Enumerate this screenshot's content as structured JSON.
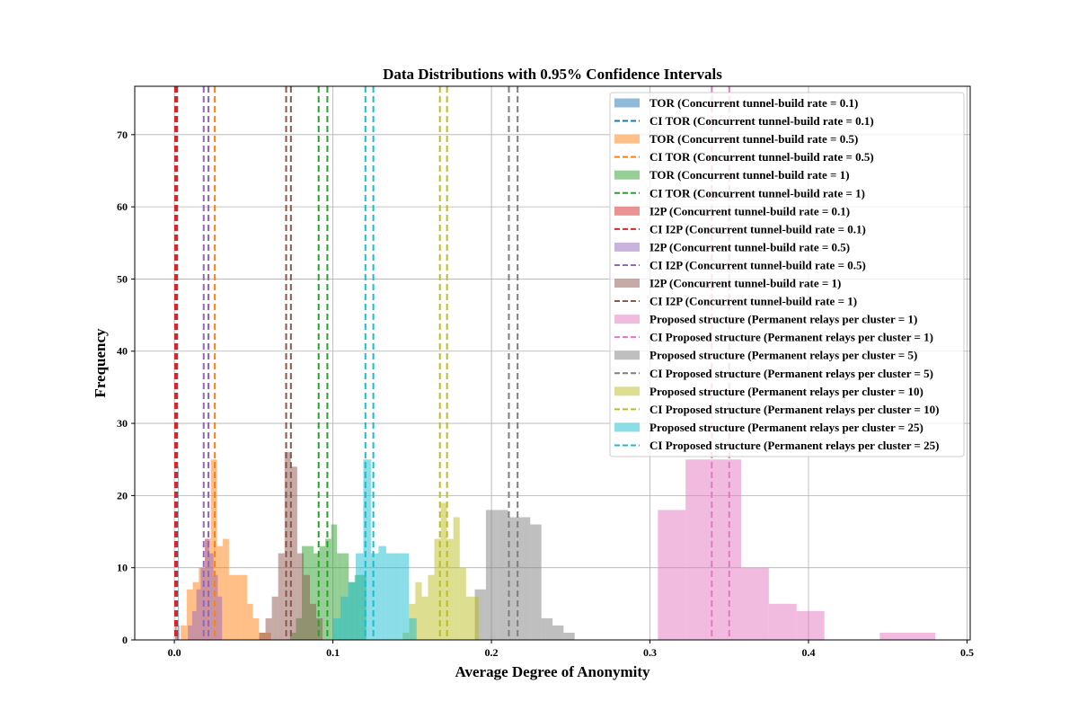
{
  "chart_data": {
    "type": "histogram",
    "title": "Data Distributions with 0.95% Confidence Intervals",
    "xlabel": "Average Degree of Anonymity",
    "ylabel": "Frequency",
    "xlim": [
      -0.025,
      0.502
    ],
    "ylim": [
      0,
      76.7
    ],
    "xticks": [
      "0.0",
      "0.1",
      "0.2",
      "0.3",
      "0.4",
      "0.5"
    ],
    "yticks": [
      "0",
      "10",
      "20",
      "30",
      "40",
      "50",
      "60",
      "70"
    ],
    "grid": true,
    "legend_position": "upper right",
    "series": [
      {
        "name": "TOR (Concurrent tunnel-build rate = 0.1)",
        "ci_name": "CI TOR (Concurrent tunnel-build rate = 0.1)",
        "color": "#1f77b4",
        "bins": [
          [
            0.0015,
            0.0019,
            1
          ],
          [
            0.0019,
            0.0023,
            2
          ],
          [
            0.0023,
            0.0027,
            24
          ],
          [
            0.0027,
            0.0031,
            2
          ]
        ],
        "ci": [
          0.0014,
          0.0018
        ]
      },
      {
        "name": "TOR (Concurrent tunnel-build rate = 0.5)",
        "ci_name": "CI TOR (Concurrent tunnel-build rate = 0.5)",
        "color": "#ff7f0e",
        "bins": [
          [
            0.004,
            0.0078,
            2
          ],
          [
            0.0078,
            0.0116,
            7
          ],
          [
            0.0116,
            0.0154,
            8
          ],
          [
            0.0154,
            0.0192,
            10
          ],
          [
            0.0192,
            0.023,
            14
          ],
          [
            0.023,
            0.0268,
            25
          ],
          [
            0.0268,
            0.0306,
            13
          ],
          [
            0.0306,
            0.0344,
            14
          ],
          [
            0.0344,
            0.0382,
            9
          ],
          [
            0.0382,
            0.042,
            9
          ],
          [
            0.042,
            0.0458,
            9
          ],
          [
            0.0458,
            0.0496,
            5
          ],
          [
            0.0496,
            0.0534,
            3
          ],
          [
            0.0534,
            0.0572,
            1
          ],
          [
            0.0572,
            0.061,
            1
          ]
        ],
        "ci": [
          0.0215,
          0.0255
        ]
      },
      {
        "name": "TOR (Concurrent tunnel-build rate = 1)",
        "ci_name": "CI TOR (Concurrent tunnel-build rate = 1)",
        "color": "#2ca02c",
        "bins": [
          [
            0.073,
            0.0767,
            1
          ],
          [
            0.0767,
            0.0804,
            3
          ],
          [
            0.0804,
            0.0841,
            13
          ],
          [
            0.0841,
            0.0878,
            13
          ],
          [
            0.0878,
            0.0915,
            12
          ],
          [
            0.0915,
            0.0952,
            13
          ],
          [
            0.0952,
            0.0989,
            14
          ],
          [
            0.0989,
            0.1026,
            16
          ],
          [
            0.1026,
            0.1063,
            12
          ],
          [
            0.1063,
            0.11,
            12
          ],
          [
            0.11,
            0.1137,
            8
          ],
          [
            0.1137,
            0.1174,
            9
          ],
          [
            0.1174,
            0.1211,
            9
          ]
        ],
        "ci": [
          0.091,
          0.0965
        ]
      },
      {
        "name": "I2P (Concurrent tunnel-build rate = 0.1)",
        "ci_name": "CI I2P (Concurrent tunnel-build rate = 0.1)",
        "color": "#d62728",
        "bins": [
          [
            0.0005,
            0.0015,
            2
          ],
          [
            0.0015,
            0.0025,
            1
          ]
        ],
        "ci": [
          0.0005,
          0.0015
        ]
      },
      {
        "name": "I2P (Concurrent tunnel-build rate = 0.5)",
        "ci_name": "CI I2P (Concurrent tunnel-build rate = 0.5)",
        "color": "#9467bd",
        "bins": [
          [
            0.0085,
            0.0112,
            2
          ],
          [
            0.0112,
            0.0139,
            4
          ],
          [
            0.0139,
            0.0166,
            7
          ],
          [
            0.0166,
            0.0193,
            10
          ],
          [
            0.0193,
            0.022,
            14
          ],
          [
            0.022,
            0.0247,
            12
          ],
          [
            0.0247,
            0.0274,
            9
          ],
          [
            0.0274,
            0.0301,
            6
          ]
        ],
        "ci": [
          0.0185,
          0.0215
        ]
      },
      {
        "name": "I2P (Concurrent tunnel-build rate = 1)",
        "ci_name": "CI I2P (Concurrent tunnel-build rate = 1)",
        "color": "#8c564b",
        "bins": [
          [
            0.0535,
            0.0575,
            1
          ],
          [
            0.0575,
            0.0615,
            3
          ],
          [
            0.0615,
            0.0655,
            6
          ],
          [
            0.0655,
            0.0695,
            12
          ],
          [
            0.0695,
            0.0735,
            26
          ],
          [
            0.0735,
            0.0775,
            24
          ],
          [
            0.0775,
            0.0815,
            12
          ],
          [
            0.0815,
            0.0855,
            9
          ],
          [
            0.0855,
            0.0895,
            5
          ],
          [
            0.0895,
            0.0935,
            3
          ]
        ],
        "ci": [
          0.0705,
          0.0735
        ]
      },
      {
        "name": "Proposed structure (Permanent relays per cluster = 1)",
        "ci_name": "CI Proposed structure (Permanent relays per cluster = 1)",
        "color": "#e377c2",
        "bins": [
          [
            0.305,
            0.3225,
            18
          ],
          [
            0.3225,
            0.34,
            25
          ],
          [
            0.34,
            0.3575,
            25
          ],
          [
            0.3575,
            0.375,
            10
          ],
          [
            0.375,
            0.3925,
            5
          ],
          [
            0.3925,
            0.41,
            4
          ],
          [
            0.445,
            0.48,
            1
          ]
        ],
        "ci": [
          0.339,
          0.35
        ]
      },
      {
        "name": "Proposed structure (Permanent relays per cluster = 5)",
        "ci_name": "CI Proposed structure (Permanent relays per cluster = 5)",
        "color": "#7f7f7f",
        "bins": [
          [
            0.1895,
            0.1965,
            7
          ],
          [
            0.1965,
            0.2035,
            18
          ],
          [
            0.2035,
            0.2105,
            18
          ],
          [
            0.2105,
            0.2175,
            17
          ],
          [
            0.2175,
            0.2245,
            17
          ],
          [
            0.2245,
            0.2315,
            16
          ],
          [
            0.2315,
            0.2385,
            3
          ],
          [
            0.2385,
            0.2455,
            2
          ],
          [
            0.2455,
            0.2525,
            1
          ],
          [
            0.2525,
            0.2595,
            0
          ]
        ],
        "ci": [
          0.211,
          0.2165
        ]
      },
      {
        "name": "Proposed structure (Permanent relays per cluster = 10)",
        "ci_name": "CI Proposed structure (Permanent relays per cluster = 10)",
        "color": "#bcbd22",
        "bins": [
          [
            0.144,
            0.148,
            1
          ],
          [
            0.148,
            0.152,
            5
          ],
          [
            0.152,
            0.156,
            8
          ],
          [
            0.156,
            0.16,
            6
          ],
          [
            0.16,
            0.164,
            9
          ],
          [
            0.164,
            0.168,
            14
          ],
          [
            0.168,
            0.172,
            19
          ],
          [
            0.172,
            0.176,
            14
          ],
          [
            0.176,
            0.18,
            17
          ],
          [
            0.18,
            0.184,
            10
          ],
          [
            0.184,
            0.188,
            6
          ],
          [
            0.188,
            0.192,
            6
          ]
        ],
        "ci": [
          0.1675,
          0.172
        ]
      },
      {
        "name": "Proposed structure (Permanent relays per cluster = 25)",
        "ci_name": "CI Proposed structure (Permanent relays per cluster = 25)",
        "color": "#17becf",
        "bins": [
          [
            0.1,
            0.1048,
            3
          ],
          [
            0.1048,
            0.1096,
            6
          ],
          [
            0.1096,
            0.1144,
            8
          ],
          [
            0.1144,
            0.1192,
            12
          ],
          [
            0.1192,
            0.124,
            25
          ],
          [
            0.124,
            0.1288,
            12
          ],
          [
            0.1288,
            0.1336,
            13
          ],
          [
            0.1336,
            0.1384,
            12
          ],
          [
            0.1384,
            0.1432,
            12
          ],
          [
            0.1432,
            0.148,
            12
          ],
          [
            0.148,
            0.1528,
            3
          ]
        ],
        "ci": [
          0.1205,
          0.1255
        ]
      }
    ]
  }
}
